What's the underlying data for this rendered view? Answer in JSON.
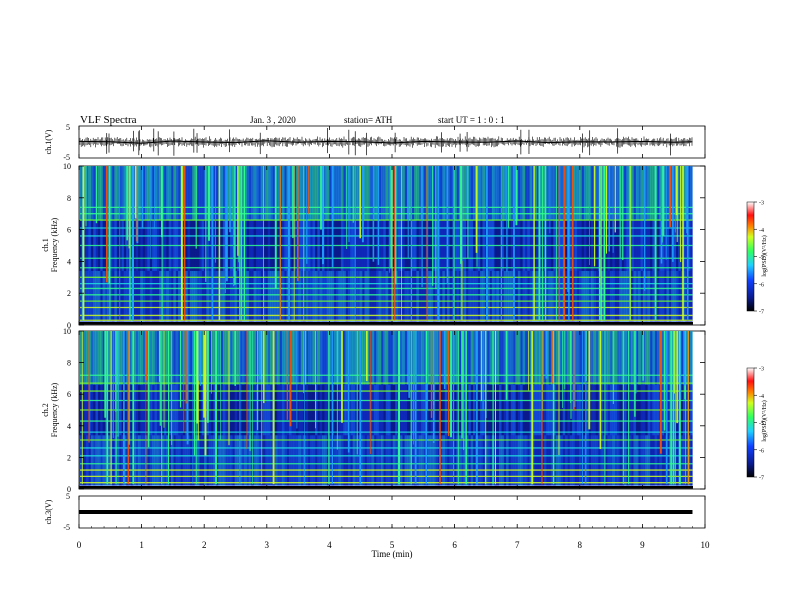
{
  "header": {
    "title": "VLF  Spectra",
    "date": "Jan. 3  , 2020",
    "station": "station= ATH",
    "start": "start  UT  =   1 : 0  : 1"
  },
  "colors": {
    "spec_background": "#0a1a8c",
    "trace": "#000000"
  },
  "chart_data": [
    {
      "type": "line",
      "id": "ch1-waveform",
      "ylabel": "ch.1(V)",
      "ylim": [
        -5,
        5
      ],
      "yticks": [
        "5",
        "-5"
      ],
      "x": [
        0,
        0.5,
        1,
        1.5,
        2,
        2.5,
        3,
        3.5,
        4,
        4.5,
        5,
        5.5,
        6,
        6.5,
        7,
        7.5,
        8,
        8.5,
        9,
        9.5,
        9.8
      ],
      "values": [
        0.2,
        0.1,
        -0.4,
        0.3,
        0.0,
        -0.2,
        0.4,
        -0.1,
        0.2,
        0.1,
        -0.3,
        0.2,
        0.0,
        -0.1,
        0.3,
        -0.2,
        0.1,
        0.0,
        0.2,
        -0.1,
        0.1
      ]
    },
    {
      "type": "heatmap",
      "id": "ch1-spectrogram",
      "ylabel": "ch.1\nFrequency (kHz)",
      "ylim": [
        0,
        10
      ],
      "yticks": [
        "0",
        "2",
        "4",
        "6",
        "8",
        "10"
      ],
      "colorbar": {
        "label": "log(PSD)(V²/Hz)",
        "ticks": [
          "-3",
          "-4",
          "-5",
          "-6",
          "-7"
        ],
        "range": [
          -7,
          -3
        ]
      },
      "hlines_khz": [
        0.3,
        0.6,
        1.1,
        1.5,
        1.9,
        2.3,
        2.6,
        3.0,
        3.6,
        4.2,
        5.0,
        5.6,
        6.1,
        6.6,
        7.0,
        7.4
      ]
    },
    {
      "type": "heatmap",
      "id": "ch2-spectrogram",
      "ylabel": "ch.2\nFrequency (kHz)",
      "ylim": [
        0,
        10
      ],
      "yticks": [
        "0",
        "2",
        "4",
        "6",
        "8",
        "10"
      ],
      "colorbar": {
        "label": "log(PSD)(V²/Hz)",
        "ticks": [
          "-3",
          "-4",
          "-5",
          "-6",
          "-7"
        ],
        "range": [
          -7,
          -3
        ]
      },
      "hlines_khz": [
        0.4,
        0.8,
        1.2,
        1.6,
        2.1,
        2.6,
        3.1,
        3.6,
        4.3,
        5.0,
        5.6,
        6.2,
        6.7,
        7.2
      ]
    },
    {
      "type": "line",
      "id": "ch3-waveform",
      "ylabel": "ch.3(V)",
      "ylim": [
        -5,
        5
      ],
      "yticks": [
        "5",
        "-5"
      ],
      "x": [
        0,
        9.8
      ],
      "values": [
        0,
        0
      ]
    }
  ],
  "xaxis": {
    "label": "Time  (min)",
    "range": [
      0,
      10
    ],
    "ticks": [
      "0",
      "1",
      "2",
      "3",
      "4",
      "5",
      "6",
      "7",
      "8",
      "9",
      "10"
    ]
  }
}
